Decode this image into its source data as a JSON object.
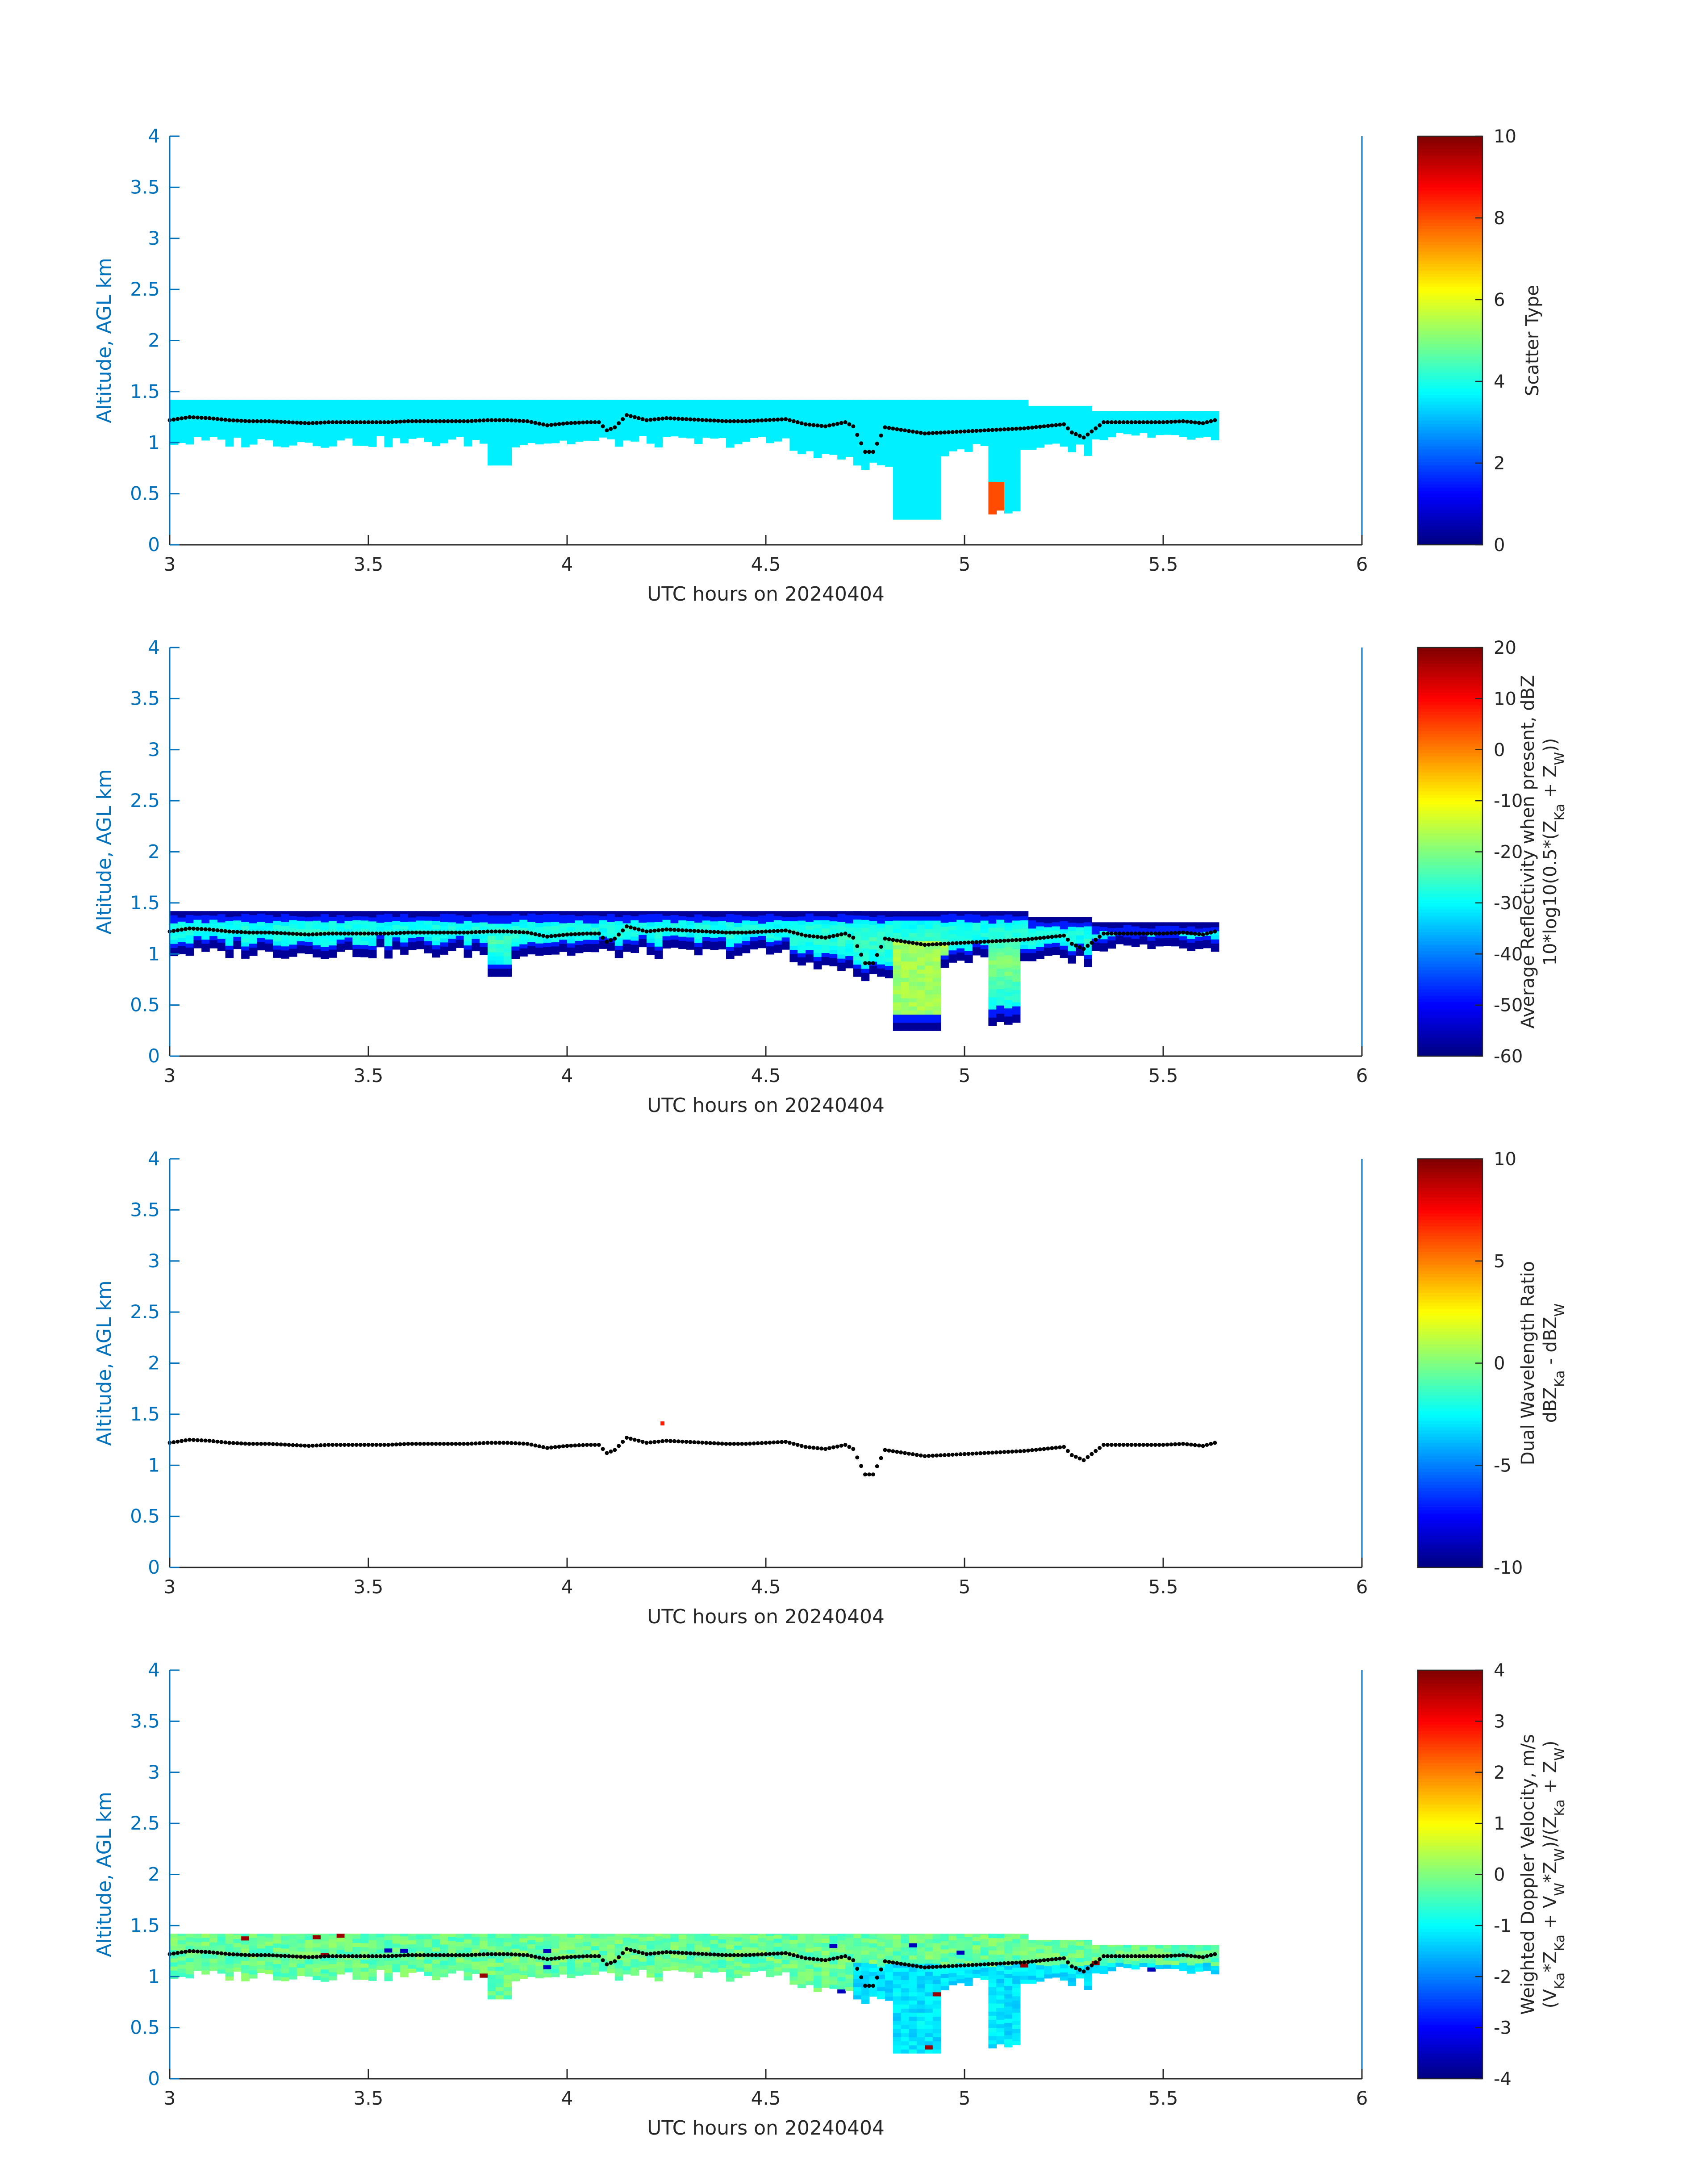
{
  "figure": {
    "x_axis_label": "UTC hours on 20240404",
    "y_axis_label": "Altitude, AGL km"
  },
  "chart_data": [
    {
      "type": "heatmap",
      "xlabel": "UTC hours on 20240404",
      "ylabel": "Altitude, AGL km",
      "xlim": [
        3,
        6
      ],
      "ylim": [
        0,
        4
      ],
      "x_ticks": [
        "3",
        "3.5",
        "4",
        "4.5",
        "5",
        "5.5",
        "6"
      ],
      "y_ticks": [
        "0",
        "0.5",
        "1",
        "1.5",
        "2",
        "2.5",
        "3",
        "3.5",
        "4"
      ],
      "colorbar_label": [
        "Scatter Type"
      ],
      "colorbar_range": [
        0,
        10
      ],
      "colorbar_ticks": [
        "0",
        "2",
        "4",
        "6",
        "8",
        "10"
      ],
      "grid": false,
      "colormap": "jet",
      "field": "scatter_type",
      "notes_from_image": "cloud layer mostly scatter type ~3.5 (cyan); small region of ~8 (orange) near 5.05 h below 0.6 km"
    },
    {
      "type": "heatmap",
      "xlabel": "UTC hours on 20240404",
      "ylabel": "Altitude, AGL km",
      "xlim": [
        3,
        6
      ],
      "ylim": [
        0,
        4
      ],
      "x_ticks": [
        "3",
        "3.5",
        "4",
        "4.5",
        "5",
        "5.5",
        "6"
      ],
      "y_ticks": [
        "0",
        "0.5",
        "1",
        "1.5",
        "2",
        "2.5",
        "3",
        "3.5",
        "4"
      ],
      "colorbar_label": [
        "Average Reflectivity when present, dBZ",
        "10*log10(0.5*(Z",
        "Ka",
        " + Z",
        "W",
        "))"
      ],
      "colorbar_range": [
        -60,
        20
      ],
      "colorbar_ticks": [
        "-60",
        "-50",
        "-40",
        "-30",
        "-20",
        "-10",
        "0",
        "10",
        "20"
      ],
      "grid": false,
      "colormap": "jet",
      "field": "reflectivity"
    },
    {
      "type": "heatmap",
      "xlabel": "UTC hours on 20240404",
      "ylabel": "Altitude, AGL km",
      "xlim": [
        3,
        6
      ],
      "ylim": [
        0,
        4
      ],
      "x_ticks": [
        "3",
        "3.5",
        "4",
        "4.5",
        "5",
        "5.5",
        "6"
      ],
      "y_ticks": [
        "0",
        "0.5",
        "1",
        "1.5",
        "2",
        "2.5",
        "3",
        "3.5",
        "4"
      ],
      "colorbar_label": [
        "Dual Wavelength Ratio",
        "dBZ",
        "Ka",
        " - dBZ",
        "W"
      ],
      "colorbar_range": [
        -10,
        10
      ],
      "colorbar_ticks": [
        "-10",
        "-5",
        "0",
        "5",
        "10"
      ],
      "grid": false,
      "colormap": "jet",
      "field": "dwr",
      "points": [
        {
          "x": 4.24,
          "y": 1.41,
          "value": 7
        }
      ]
    },
    {
      "type": "heatmap",
      "xlabel": "UTC hours on 20240404",
      "ylabel": "Altitude, AGL km",
      "xlim": [
        3,
        6
      ],
      "ylim": [
        0,
        4
      ],
      "x_ticks": [
        "3",
        "3.5",
        "4",
        "4.5",
        "5",
        "5.5",
        "6"
      ],
      "y_ticks": [
        "0",
        "0.5",
        "1",
        "1.5",
        "2",
        "2.5",
        "3",
        "3.5",
        "4"
      ],
      "colorbar_label": [
        "Weighted Doppler Velocity, m/s",
        "(V",
        "Ka",
        "*Z",
        "Ka",
        " + V",
        "W",
        "*Z",
        "W",
        ")/(Z",
        "Ka",
        " + Z",
        "W",
        ")"
      ],
      "colorbar_range": [
        -4,
        4
      ],
      "colorbar_ticks": [
        "-4",
        "-3",
        "-2",
        "-1",
        "0",
        "1",
        "2",
        "3",
        "4"
      ],
      "grid": false,
      "colormap": "jet",
      "field": "doppler"
    }
  ],
  "cloud_base_series": {
    "marker": "black dots",
    "x": [
      3.0,
      3.05,
      3.1,
      3.15,
      3.2,
      3.25,
      3.3,
      3.35,
      3.4,
      3.45,
      3.5,
      3.55,
      3.6,
      3.65,
      3.7,
      3.75,
      3.8,
      3.85,
      3.9,
      3.95,
      4.0,
      4.05,
      4.08,
      4.1,
      4.12,
      4.15,
      4.2,
      4.25,
      4.3,
      4.35,
      4.4,
      4.45,
      4.5,
      4.55,
      4.6,
      4.65,
      4.7,
      4.72,
      4.75,
      4.77,
      4.8,
      4.85,
      4.9,
      4.95,
      5.0,
      5.05,
      5.1,
      5.15,
      5.2,
      5.25,
      5.27,
      5.3,
      5.35,
      5.4,
      5.45,
      5.5,
      5.55,
      5.6,
      5.63
    ],
    "y": [
      1.22,
      1.25,
      1.24,
      1.22,
      1.21,
      1.21,
      1.2,
      1.19,
      1.2,
      1.2,
      1.2,
      1.2,
      1.21,
      1.21,
      1.21,
      1.21,
      1.22,
      1.22,
      1.21,
      1.17,
      1.19,
      1.2,
      1.2,
      1.12,
      1.15,
      1.27,
      1.22,
      1.24,
      1.23,
      1.22,
      1.21,
      1.21,
      1.22,
      1.23,
      1.18,
      1.16,
      1.2,
      1.16,
      0.91,
      0.91,
      1.15,
      1.12,
      1.09,
      1.1,
      1.11,
      1.12,
      1.13,
      1.14,
      1.16,
      1.18,
      1.1,
      1.05,
      1.2,
      1.2,
      1.2,
      1.2,
      1.21,
      1.19,
      1.22
    ]
  },
  "colors": {
    "axis": "#0072bd",
    "tick_text": "#262626",
    "label_text": "#262626",
    "ylabel_text": "#0072bd",
    "marker": "#000000",
    "background": "#ffffff"
  }
}
